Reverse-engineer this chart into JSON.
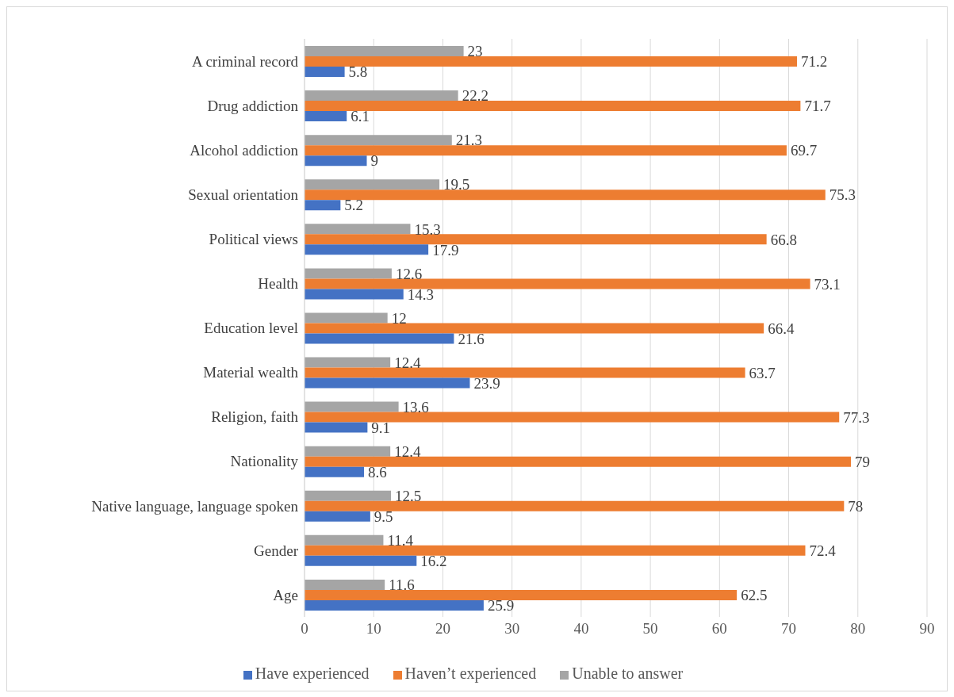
{
  "chart_data": {
    "type": "bar",
    "orientation": "horizontal",
    "categories": [
      "A criminal record",
      "Drug addiction",
      "Alcohol addiction",
      "Sexual orientation",
      "Political views",
      "Health",
      "Education level",
      "Material wealth",
      "Religion, faith",
      "Nationality",
      "Native language, language spoken",
      "Gender",
      "Age"
    ],
    "series": [
      {
        "name": "Unable to answer",
        "color": "#a5a5a5",
        "values": [
          23,
          22.2,
          21.3,
          19.5,
          15.3,
          12.6,
          12,
          12.4,
          13.6,
          12.4,
          12.5,
          11.4,
          11.6
        ]
      },
      {
        "name": "Haven’t experienced",
        "color": "#ed7d31",
        "values": [
          71.2,
          71.7,
          69.7,
          75.3,
          66.8,
          73.1,
          66.4,
          63.7,
          77.3,
          79,
          78,
          72.4,
          62.5
        ]
      },
      {
        "name": "Have experienced",
        "color": "#4472c4",
        "values": [
          5.8,
          6.1,
          9,
          5.2,
          17.9,
          14.3,
          21.6,
          23.9,
          9.1,
          8.6,
          9.5,
          16.2,
          25.9
        ]
      }
    ],
    "xlim": [
      0,
      90
    ],
    "xticks": [
      0,
      10,
      20,
      30,
      40,
      50,
      60,
      70,
      80,
      90
    ],
    "grid": "x",
    "legend": "bottom",
    "data_labels": true
  }
}
